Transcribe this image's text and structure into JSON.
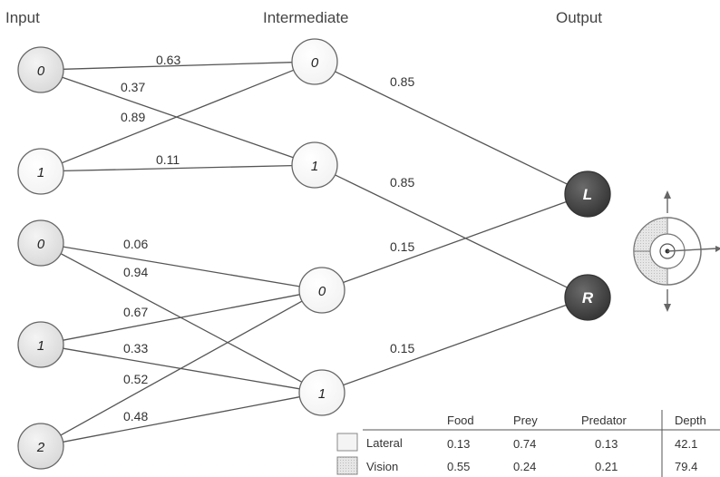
{
  "headers": {
    "input": "Input",
    "intermediate": "Intermediate",
    "output": "Output"
  },
  "colors": {
    "node_fill_plain": "#ffffff",
    "node_fill_shaded": "#e8e8e8",
    "node_fill_output": "#4a4a4a",
    "edge": "#555555"
  },
  "input_nodes": [
    {
      "id": "in-0a",
      "label": "0",
      "style": "shaded"
    },
    {
      "id": "in-1a",
      "label": "1",
      "style": "plain"
    },
    {
      "id": "in-0b",
      "label": "0",
      "style": "shaded"
    },
    {
      "id": "in-1b",
      "label": "1",
      "style": "shaded"
    },
    {
      "id": "in-2",
      "label": "2",
      "style": "shaded"
    }
  ],
  "intermediate_nodes": [
    {
      "id": "mid-0a",
      "label": "0"
    },
    {
      "id": "mid-1a",
      "label": "1"
    },
    {
      "id": "mid-0b",
      "label": "0"
    },
    {
      "id": "mid-1b",
      "label": "1"
    }
  ],
  "output_nodes": [
    {
      "id": "out-l",
      "label": "L"
    },
    {
      "id": "out-r",
      "label": "R"
    }
  ],
  "edges": [
    {
      "from": "in-0a",
      "to": "mid-0a",
      "weight": "0.63"
    },
    {
      "from": "in-0a",
      "to": "mid-1a",
      "weight": "0.37"
    },
    {
      "from": "in-1a",
      "to": "mid-0a",
      "weight": "0.89"
    },
    {
      "from": "in-1a",
      "to": "mid-1a",
      "weight": "0.11"
    },
    {
      "from": "in-0b",
      "to": "mid-0b",
      "weight": "0.06"
    },
    {
      "from": "in-0b",
      "to": "mid-1b",
      "weight": "0.94"
    },
    {
      "from": "in-1b",
      "to": "mid-0b",
      "weight": "0.67"
    },
    {
      "from": "in-1b",
      "to": "mid-1b",
      "weight": "0.33"
    },
    {
      "from": "in-2",
      "to": "mid-0b",
      "weight": "0.52"
    },
    {
      "from": "in-2",
      "to": "mid-1b",
      "weight": "0.48"
    },
    {
      "from": "mid-0a",
      "to": "out-l",
      "weight": "0.85"
    },
    {
      "from": "mid-1a",
      "to": "out-r",
      "weight": "0.85"
    },
    {
      "from": "mid-0b",
      "to": "out-l",
      "weight": "0.15"
    },
    {
      "from": "mid-1b",
      "to": "out-r",
      "weight": "0.15"
    }
  ],
  "table": {
    "columns": [
      "Food",
      "Prey",
      "Predator",
      "Depth"
    ],
    "rows": [
      {
        "label": "Lateral",
        "values": [
          "0.13",
          "0.74",
          "0.13",
          "42.1"
        ]
      },
      {
        "label": "Vision",
        "values": [
          "0.55",
          "0.24",
          "0.21",
          "79.4"
        ]
      }
    ]
  }
}
